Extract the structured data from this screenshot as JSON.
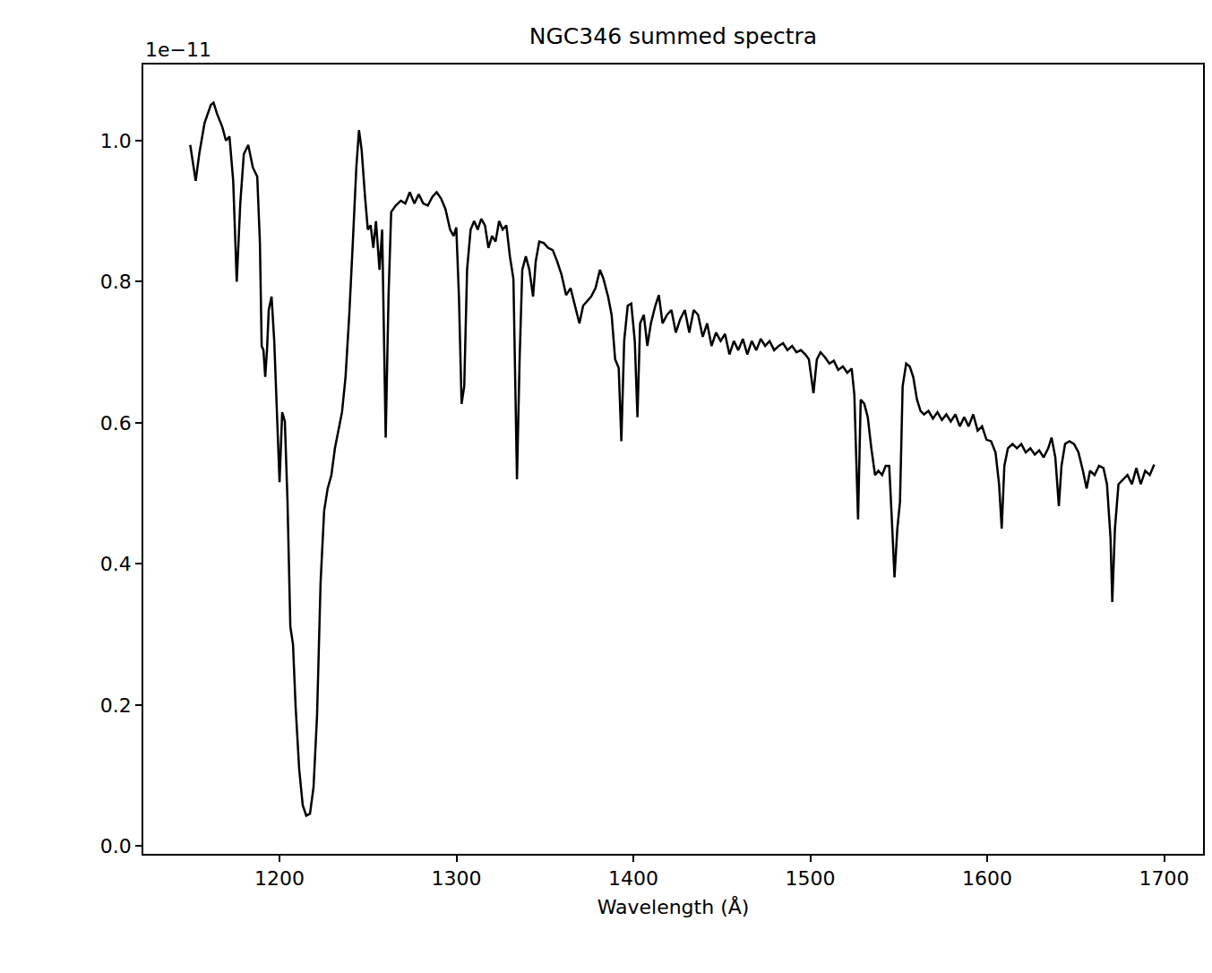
{
  "chart_data": {
    "type": "line",
    "title": "NGC346 summed spectra",
    "x_label": "Wavelength (Å)",
    "annotations": [
      "1e−11"
    ],
    "color": "#000000",
    "grid": false,
    "xlim": [
      1123,
      1722
    ],
    "ylim": [
      -0.011,
      1.108
    ],
    "xticks": [
      1200,
      1300,
      1400,
      1500,
      1600,
      1700
    ],
    "yticks": [
      {
        "value": 0,
        "label": "0.0"
      },
      {
        "value": 0.2,
        "label": "0.2"
      },
      {
        "value": 0.4,
        "label": "0.4"
      },
      {
        "value": 0.6,
        "label": "0.6"
      },
      {
        "value": 0.8,
        "label": "0.8"
      },
      {
        "value": 1,
        "label": "1.0"
      }
    ],
    "x": [
      1149.5,
      1152.6,
      1154.6,
      1157.6,
      1161.2,
      1162.7,
      1164.7,
      1167.7,
      1169.7,
      1171.7,
      1173.8,
      1175.8,
      1177.8,
      1179.8,
      1182.3,
      1184.9,
      1187.4,
      1188.9,
      1189.9,
      1190.9,
      1191.9,
      1192.9,
      1193.9,
      1195.5,
      1197.0,
      1198.5,
      1200.0,
      1201.5,
      1203.0,
      1204.5,
      1206.1,
      1207.6,
      1209.1,
      1211.1,
      1213.1,
      1215.1,
      1217.2,
      1219.2,
      1221.2,
      1223.2,
      1225.2,
      1227.2,
      1229.3,
      1231.3,
      1233.3,
      1235.3,
      1237.3,
      1239.4,
      1241.4,
      1243.4,
      1244.9,
      1246.4,
      1248.4,
      1249.9,
      1251.5,
      1253.0,
      1254.5,
      1256.5,
      1258.0,
      1260.0,
      1261.6,
      1263.1,
      1265.6,
      1268.6,
      1271.1,
      1273.6,
      1276.2,
      1278.7,
      1281.2,
      1283.8,
      1286.3,
      1288.8,
      1291.3,
      1293.8,
      1296.4,
      1298.4,
      1299.9,
      1301.4,
      1302.9,
      1304.4,
      1306.0,
      1308.0,
      1310.0,
      1312.0,
      1314.0,
      1316.1,
      1318.1,
      1320.1,
      1322.1,
      1324.1,
      1326.1,
      1328.2,
      1330.2,
      1332.2,
      1334.2,
      1335.7,
      1337.2,
      1339.2,
      1341.2,
      1343.3,
      1344.8,
      1346.8,
      1349.3,
      1351.8,
      1354.4,
      1356.9,
      1359.4,
      1362.0,
      1364.5,
      1367.0,
      1369.5,
      1371.6,
      1373.6,
      1376.1,
      1378.6,
      1381.1,
      1383.1,
      1385.7,
      1387.7,
      1389.7,
      1391.7,
      1393.2,
      1394.8,
      1396.8,
      1398.8,
      1400.8,
      1402.3,
      1403.8,
      1405.9,
      1407.9,
      1409.9,
      1412.4,
      1414.4,
      1416.5,
      1419.0,
      1421.5,
      1424.0,
      1426.5,
      1429.1,
      1431.6,
      1434.1,
      1436.6,
      1439.2,
      1441.7,
      1444.2,
      1446.7,
      1449.3,
      1451.8,
      1454.3,
      1456.8,
      1459.3,
      1461.9,
      1464.4,
      1466.9,
      1469.5,
      1472.0,
      1474.5,
      1477.0,
      1479.6,
      1482.1,
      1484.6,
      1487.1,
      1489.7,
      1492.2,
      1494.7,
      1497.2,
      1499.2,
      1501.8,
      1503.7,
      1505.8,
      1508.3,
      1510.8,
      1513.3,
      1515.8,
      1518.4,
      1520.9,
      1523.4,
      1524.9,
      1527.0,
      1528.5,
      1530.5,
      1532.5,
      1534.5,
      1536.6,
      1538.5,
      1540.6,
      1542.6,
      1544.6,
      1546.1,
      1547.6,
      1549.2,
      1550.7,
      1552.2,
      1554.2,
      1556.2,
      1558.2,
      1560.3,
      1562.3,
      1564.3,
      1566.8,
      1569.3,
      1571.9,
      1574.4,
      1576.9,
      1579.4,
      1582.0,
      1584.5,
      1587.0,
      1589.5,
      1592.1,
      1594.6,
      1597.1,
      1599.6,
      1602.2,
      1604.7,
      1606.7,
      1608.2,
      1609.7,
      1611.7,
      1614.3,
      1616.8,
      1619.3,
      1621.8,
      1624.4,
      1626.9,
      1629.4,
      1631.9,
      1634.5,
      1636.4,
      1638.5,
      1640.5,
      1642.0,
      1644.0,
      1646.5,
      1649.1,
      1651.6,
      1654.1,
      1656.2,
      1658.1,
      1660.7,
      1663.2,
      1665.7,
      1667.7,
      1669.7,
      1670.7,
      1672.2,
      1674.2,
      1676.7,
      1679.3,
      1681.8,
      1684.3,
      1686.8,
      1689.3,
      1691.9,
      1694.4
    ],
    "values": [
      0.994,
      0.943,
      0.981,
      1.025,
      1.051,
      1.054,
      1.038,
      1.019,
      1.0,
      1.006,
      0.943,
      0.8,
      0.911,
      0.981,
      0.994,
      0.962,
      0.949,
      0.855,
      0.709,
      0.703,
      0.665,
      0.703,
      0.76,
      0.779,
      0.716,
      0.627,
      0.516,
      0.615,
      0.602,
      0.488,
      0.311,
      0.286,
      0.197,
      0.109,
      0.058,
      0.043,
      0.046,
      0.083,
      0.185,
      0.374,
      0.475,
      0.507,
      0.526,
      0.564,
      0.589,
      0.615,
      0.665,
      0.753,
      0.855,
      0.962,
      1.015,
      0.987,
      0.918,
      0.874,
      0.88,
      0.848,
      0.886,
      0.817,
      0.874,
      0.579,
      0.779,
      0.899,
      0.908,
      0.915,
      0.911,
      0.927,
      0.911,
      0.924,
      0.911,
      0.908,
      0.92,
      0.927,
      0.918,
      0.903,
      0.874,
      0.865,
      0.877,
      0.779,
      0.627,
      0.652,
      0.817,
      0.874,
      0.886,
      0.874,
      0.889,
      0.88,
      0.848,
      0.865,
      0.857,
      0.886,
      0.874,
      0.88,
      0.836,
      0.804,
      0.52,
      0.69,
      0.817,
      0.836,
      0.817,
      0.779,
      0.829,
      0.857,
      0.855,
      0.848,
      0.845,
      0.829,
      0.81,
      0.781,
      0.791,
      0.766,
      0.741,
      0.766,
      0.772,
      0.779,
      0.791,
      0.817,
      0.804,
      0.779,
      0.753,
      0.69,
      0.678,
      0.574,
      0.716,
      0.766,
      0.769,
      0.716,
      0.608,
      0.741,
      0.753,
      0.709,
      0.741,
      0.766,
      0.781,
      0.741,
      0.753,
      0.76,
      0.728,
      0.747,
      0.76,
      0.728,
      0.76,
      0.753,
      0.722,
      0.741,
      0.709,
      0.728,
      0.716,
      0.726,
      0.697,
      0.716,
      0.703,
      0.719,
      0.697,
      0.716,
      0.703,
      0.719,
      0.709,
      0.716,
      0.703,
      0.709,
      0.713,
      0.703,
      0.709,
      0.7,
      0.703,
      0.697,
      0.69,
      0.642,
      0.69,
      0.7,
      0.693,
      0.684,
      0.688,
      0.675,
      0.68,
      0.671,
      0.677,
      0.64,
      0.463,
      0.633,
      0.627,
      0.608,
      0.564,
      0.526,
      0.532,
      0.526,
      0.539,
      0.539,
      0.463,
      0.381,
      0.45,
      0.488,
      0.652,
      0.684,
      0.68,
      0.665,
      0.633,
      0.617,
      0.612,
      0.617,
      0.606,
      0.615,
      0.604,
      0.612,
      0.602,
      0.612,
      0.595,
      0.608,
      0.595,
      0.612,
      0.589,
      0.595,
      0.576,
      0.574,
      0.558,
      0.513,
      0.45,
      0.539,
      0.564,
      0.57,
      0.564,
      0.57,
      0.558,
      0.564,
      0.555,
      0.561,
      0.551,
      0.564,
      0.579,
      0.551,
      0.482,
      0.539,
      0.57,
      0.574,
      0.57,
      0.558,
      0.532,
      0.507,
      0.532,
      0.526,
      0.539,
      0.536,
      0.513,
      0.437,
      0.346,
      0.45,
      0.513,
      0.52,
      0.526,
      0.513,
      0.536,
      0.513,
      0.532,
      0.526,
      0.541
    ]
  }
}
